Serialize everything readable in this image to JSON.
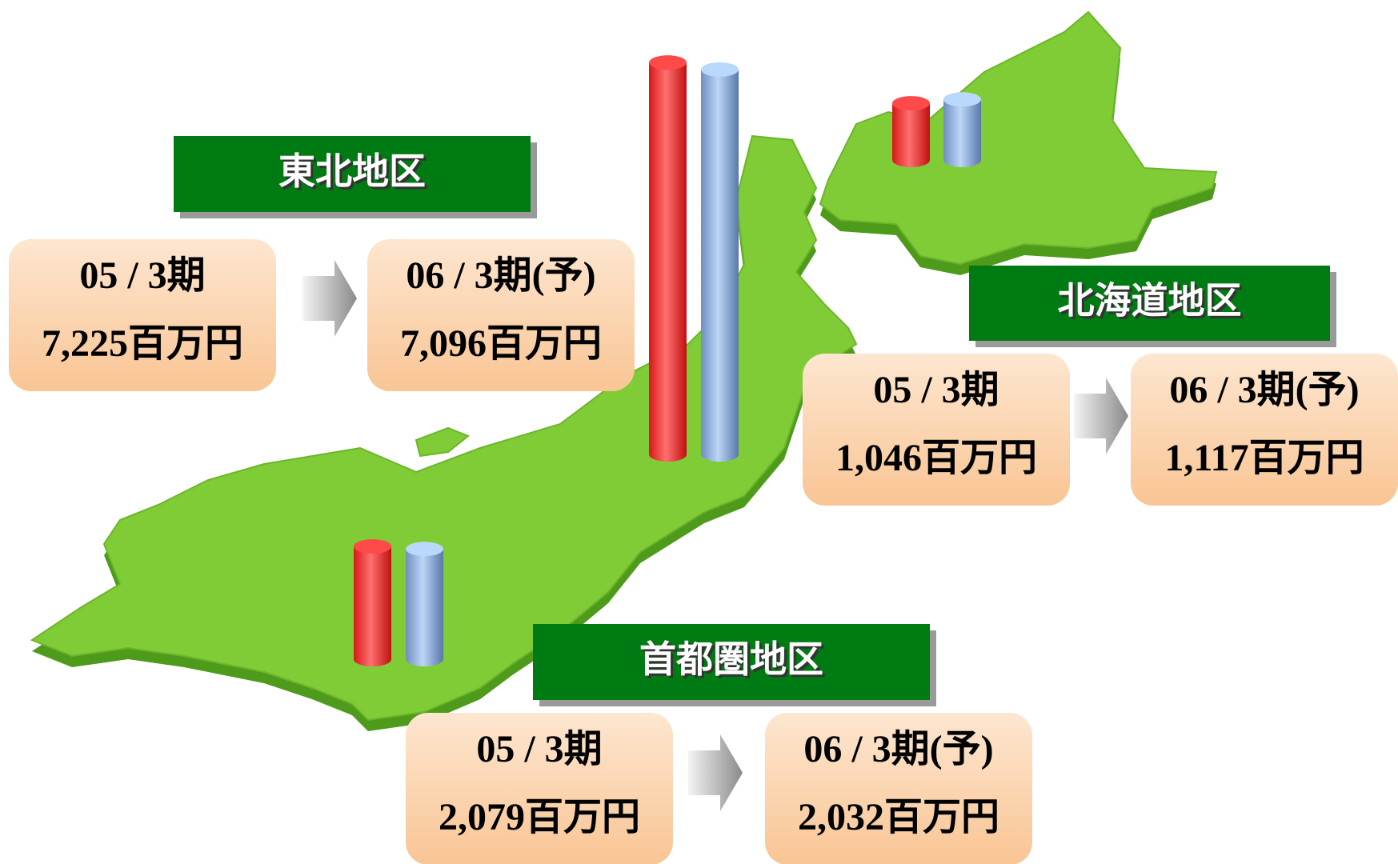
{
  "regions": [
    {
      "name": "東北地区",
      "previous": {
        "period": "05 / 3期",
        "value": 7225,
        "label": "7,225百万円"
      },
      "current": {
        "period": "06 / 3期(予)",
        "value": 7096,
        "label": "7,096百万円"
      }
    },
    {
      "name": "北海道地区",
      "previous": {
        "period": "05 / 3期",
        "value": 1046,
        "label": "1,046百万円"
      },
      "current": {
        "period": "06 / 3期(予)",
        "value": 1117,
        "label": "1,117百万円"
      }
    },
    {
      "name": "首都圏地区",
      "previous": {
        "period": "05 / 3期",
        "value": 2079,
        "label": "2,079百万円"
      },
      "current": {
        "period": "06 / 3期(予)",
        "value": 2032,
        "label": "2,032百万円"
      }
    }
  ]
}
